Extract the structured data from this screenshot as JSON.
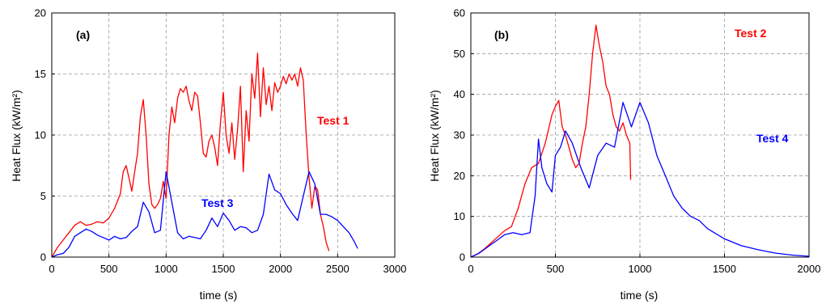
{
  "chart_data": [
    {
      "type": "line",
      "panel_label": "(a)",
      "xlabel": "time (s)",
      "ylabel": "Heat Flux (kW/m²)",
      "xlim": [
        0,
        3000
      ],
      "ylim": [
        0,
        20
      ],
      "xticks": [
        "0",
        "500",
        "1000",
        "1500",
        "2000",
        "2500",
        "3000"
      ],
      "yticks": [
        "0",
        "5",
        "10",
        "15",
        "20"
      ],
      "grid": true,
      "series": [
        {
          "name": "Test 1",
          "color": "#ff0000",
          "x": [
            0,
            50,
            100,
            150,
            200,
            250,
            300,
            350,
            400,
            450,
            500,
            550,
            600,
            625,
            650,
            675,
            700,
            725,
            750,
            775,
            800,
            825,
            850,
            875,
            900,
            925,
            950,
            975,
            1000,
            1025,
            1050,
            1075,
            1100,
            1125,
            1150,
            1175,
            1200,
            1225,
            1250,
            1275,
            1300,
            1325,
            1350,
            1375,
            1400,
            1425,
            1450,
            1475,
            1500,
            1525,
            1550,
            1575,
            1600,
            1625,
            1650,
            1675,
            1700,
            1725,
            1750,
            1775,
            1800,
            1825,
            1850,
            1875,
            1900,
            1925,
            1950,
            1975,
            2000,
            2025,
            2050,
            2075,
            2100,
            2125,
            2150,
            2175,
            2200,
            2225,
            2250,
            2275,
            2300,
            2325,
            2350,
            2375,
            2400,
            2425
          ],
          "y": [
            0,
            0.8,
            1.4,
            2.0,
            2.6,
            2.9,
            2.6,
            2.7,
            2.9,
            2.8,
            3.2,
            4.0,
            5.2,
            7.0,
            7.5,
            6.5,
            5.4,
            7.0,
            8.5,
            11.5,
            12.9,
            10.0,
            6.0,
            4.3,
            4.0,
            4.3,
            4.8,
            6.2,
            4.8,
            10.0,
            12.3,
            11.0,
            13.0,
            13.8,
            13.5,
            14.0,
            12.8,
            12.0,
            13.5,
            13.2,
            11.0,
            8.5,
            8.2,
            9.5,
            10.0,
            9.0,
            7.5,
            11.0,
            13.5,
            10.0,
            8.5,
            11.0,
            8.0,
            10.5,
            14.0,
            7.0,
            12.0,
            9.5,
            15.0,
            13.0,
            16.7,
            11.5,
            15.5,
            12.5,
            14.0,
            12.0,
            14.3,
            13.5,
            14.0,
            14.8,
            14.2,
            15.0,
            14.5,
            15.0,
            14.0,
            15.5,
            14.5,
            10.0,
            6.5,
            4.0,
            5.8,
            5.5,
            3.5,
            2.5,
            1.2,
            0.5
          ]
        },
        {
          "name": "Test 3",
          "color": "#0000ff",
          "x": [
            0,
            50,
            100,
            150,
            200,
            250,
            300,
            350,
            400,
            450,
            500,
            550,
            600,
            650,
            700,
            750,
            800,
            850,
            900,
            950,
            1000,
            1050,
            1100,
            1150,
            1200,
            1250,
            1300,
            1350,
            1400,
            1450,
            1500,
            1550,
            1600,
            1650,
            1700,
            1750,
            1800,
            1850,
            1900,
            1950,
            2000,
            2050,
            2100,
            2150,
            2200,
            2250,
            2300,
            2350,
            2400,
            2450,
            2500,
            2550,
            2600,
            2650,
            2675
          ],
          "y": [
            0,
            0.2,
            0.3,
            0.8,
            1.7,
            2.0,
            2.3,
            2.1,
            1.8,
            1.6,
            1.4,
            1.7,
            1.5,
            1.6,
            2.1,
            2.5,
            4.5,
            3.7,
            2.0,
            2.2,
            7.0,
            4.5,
            2.0,
            1.5,
            1.7,
            1.6,
            1.5,
            2.2,
            3.2,
            2.5,
            3.6,
            3.0,
            2.2,
            2.5,
            2.4,
            2.0,
            2.2,
            3.5,
            6.8,
            5.5,
            5.2,
            4.3,
            3.6,
            3.0,
            5.0,
            7.0,
            6.0,
            3.5,
            3.5,
            3.3,
            3.0,
            2.5,
            2.0,
            1.2,
            0.7
          ]
        }
      ],
      "annotations": [
        "Test 1",
        "Test 3"
      ]
    },
    {
      "type": "line",
      "panel_label": "(b)",
      "xlabel": "time (s)",
      "ylabel": "Heat Flux (kW/m²)",
      "xlim": [
        0,
        2000
      ],
      "ylim": [
        0,
        60
      ],
      "xticks": [
        "0",
        "500",
        "1000",
        "1500",
        "2000"
      ],
      "yticks": [
        "0",
        "10",
        "20",
        "30",
        "40",
        "50",
        "60"
      ],
      "grid": true,
      "series": [
        {
          "name": "Test 2",
          "color": "#ff0000",
          "x": [
            0,
            40,
            80,
            120,
            160,
            200,
            240,
            280,
            320,
            360,
            400,
            440,
            480,
            500,
            520,
            540,
            560,
            580,
            600,
            620,
            640,
            660,
            680,
            700,
            720,
            740,
            760,
            780,
            800,
            820,
            840,
            860,
            880,
            900,
            920,
            940,
            945
          ],
          "y": [
            0,
            0.8,
            2.0,
            3.5,
            5.0,
            6.5,
            7.5,
            12.0,
            18.0,
            22.0,
            23.0,
            28.0,
            35.0,
            37.0,
            38.5,
            32.0,
            30.0,
            27.0,
            24.0,
            22.0,
            23.0,
            28.0,
            32.0,
            40.0,
            50.0,
            57.0,
            52.0,
            48.0,
            42.0,
            40.0,
            35.0,
            32.0,
            31.0,
            33.0,
            30.0,
            28.0,
            19.0
          ]
        },
        {
          "name": "Test 4",
          "color": "#0000ff",
          "x": [
            0,
            50,
            100,
            150,
            200,
            250,
            300,
            350,
            380,
            400,
            420,
            450,
            480,
            500,
            530,
            560,
            600,
            650,
            700,
            750,
            800,
            850,
            900,
            950,
            1000,
            1050,
            1100,
            1150,
            1200,
            1250,
            1300,
            1350,
            1400,
            1500,
            1600,
            1700,
            1800,
            1900,
            2000
          ],
          "y": [
            0,
            1.0,
            2.5,
            4.0,
            5.5,
            6.0,
            5.5,
            6.0,
            15.0,
            29.0,
            22.0,
            18.0,
            16.0,
            25.0,
            27.0,
            31.0,
            28.0,
            22.0,
            17.0,
            25.0,
            28.0,
            27.0,
            38.0,
            32.0,
            38.0,
            33.0,
            25.0,
            20.0,
            15.0,
            12.0,
            10.0,
            9.0,
            7.0,
            4.5,
            2.8,
            1.8,
            1.0,
            0.5,
            0.2
          ]
        }
      ],
      "annotations": [
        "Test 2",
        "Test 4"
      ]
    }
  ]
}
